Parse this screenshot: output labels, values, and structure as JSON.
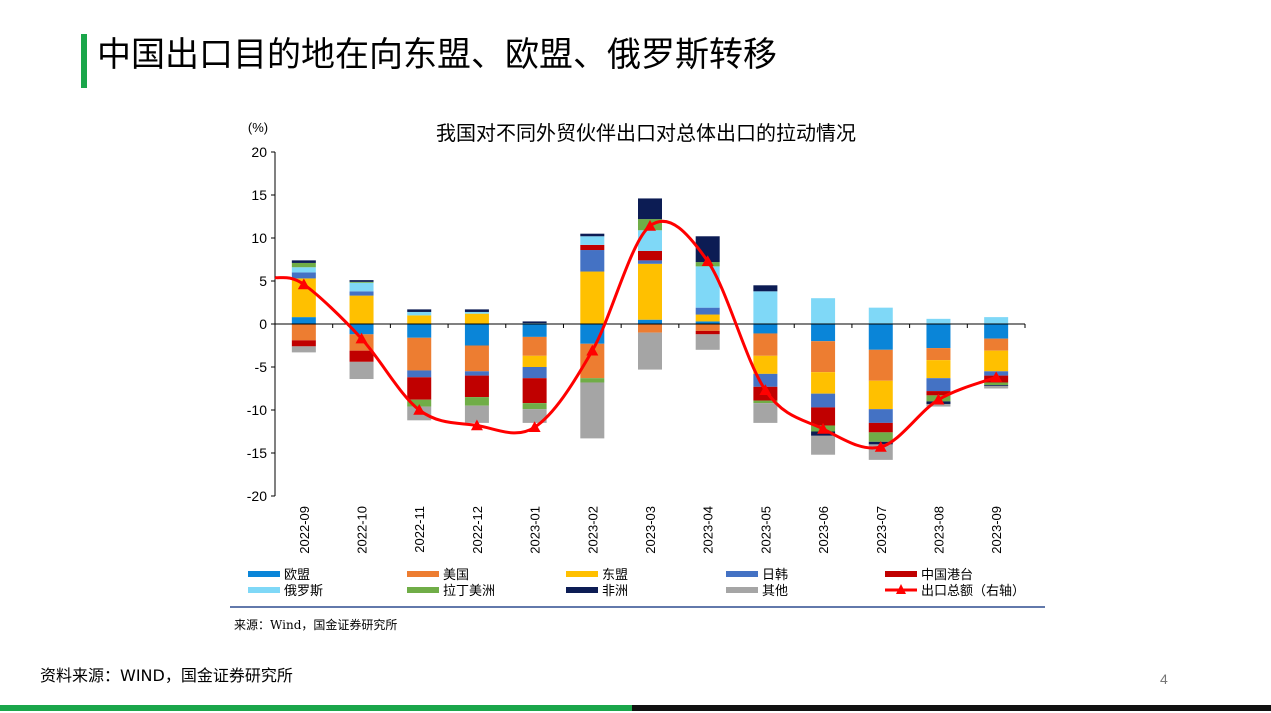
{
  "slide": {
    "title": "中国出口目的地在向东盟、欧盟、俄罗斯转移",
    "footer_source": "资料来源：WIND，国金证券研究所",
    "page_number": "4",
    "accent_color": "#1aa64a"
  },
  "chart_data": {
    "type": "bar",
    "stacked": true,
    "title": "我国对不同外贸伙伴出口对总体出口的拉动情况",
    "ylabel": "(%)",
    "ylim": [
      -20,
      20
    ],
    "yticks": [
      20,
      15,
      10,
      5,
      0,
      -5,
      -10,
      -15,
      -20
    ],
    "grid": false,
    "legend_position": "bottom",
    "source_note": "来源：Wind，国金证券研究所",
    "categories": [
      "2022-09",
      "2022-10",
      "2022-11",
      "2022-12",
      "2023-01",
      "2023-02",
      "2023-03",
      "2023-04",
      "2023-05",
      "2023-06",
      "2023-07",
      "2023-08",
      "2023-09"
    ],
    "series": [
      {
        "name": "欧盟",
        "color": "#0a85d8",
        "values": [
          0.8,
          -1.2,
          -1.6,
          -2.5,
          -1.5,
          -2.3,
          0.5,
          0.3,
          -1.1,
          -2.0,
          -3.0,
          -2.8,
          -1.7
        ]
      },
      {
        "name": "美国",
        "color": "#ed7d31",
        "values": [
          -1.9,
          -1.9,
          -3.8,
          -3.0,
          -2.2,
          -4.0,
          -1.0,
          -0.8,
          -2.6,
          -3.6,
          -3.6,
          -1.4,
          -1.4
        ]
      },
      {
        "name": "东盟",
        "color": "#ffc000",
        "values": [
          4.5,
          3.3,
          1.0,
          1.2,
          -1.3,
          6.1,
          6.5,
          0.8,
          -2.1,
          -2.5,
          -3.3,
          -2.1,
          -2.4
        ]
      },
      {
        "name": "日韩",
        "color": "#4472c4",
        "values": [
          0.7,
          0.5,
          -0.8,
          -0.5,
          -1.3,
          2.5,
          0.4,
          0.8,
          -1.5,
          -1.6,
          -1.6,
          -1.5,
          -0.5
        ]
      },
      {
        "name": "中国港台",
        "color": "#c00000",
        "values": [
          -0.7,
          -1.3,
          -2.6,
          -2.5,
          -2.9,
          0.6,
          1.1,
          -0.4,
          -1.6,
          -2.1,
          -1.1,
          -0.5,
          -0.8
        ]
      },
      {
        "name": "俄罗斯",
        "color": "#7fd8f7",
        "values": [
          0.6,
          1.0,
          0.4,
          0.2,
          0.1,
          1.0,
          2.4,
          4.8,
          3.8,
          3.0,
          1.9,
          0.6,
          0.8
        ]
      },
      {
        "name": "拉丁美洲",
        "color": "#70ad47",
        "values": [
          0.5,
          0.1,
          -0.8,
          -1.0,
          -0.7,
          -0.5,
          1.3,
          0.5,
          -0.3,
          -0.7,
          -1.1,
          -0.7,
          -0.3
        ]
      },
      {
        "name": "非洲",
        "color": "#0c1c54",
        "values": [
          0.3,
          0.2,
          0.3,
          0.3,
          0.2,
          0.3,
          2.4,
          3.0,
          0.7,
          -0.5,
          -0.3,
          -0.3,
          -0.1
        ]
      },
      {
        "name": "其他",
        "color": "#a5a5a5",
        "values": [
          -0.7,
          -2.0,
          -1.6,
          -2.0,
          -1.6,
          -6.5,
          -4.3,
          -1.8,
          -2.3,
          -2.2,
          -1.8,
          -0.3,
          -0.3
        ]
      }
    ],
    "line_series": {
      "name": "出口总额（右轴）",
      "color": "#ff0000",
      "axis": "right",
      "values": [
        4.6,
        -1.7,
        -10.0,
        -11.8,
        -12.0,
        -3.1,
        11.4,
        7.3,
        -7.7,
        -12.2,
        -14.3,
        -8.8,
        -6.2
      ]
    },
    "right_axis_visible": false
  }
}
